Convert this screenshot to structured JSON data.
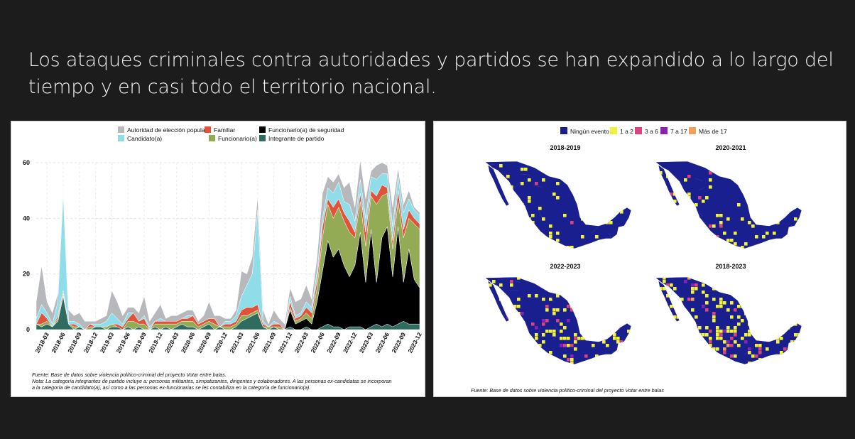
{
  "title": "Los ataques criminales contra autoridades y partidos se han expandido a lo largo del tiempo y en casi todo el territorio nacional.",
  "chart_data": {
    "type": "area",
    "stacked": true,
    "x": [
      "2018-01",
      "2018-02",
      "2018-03",
      "2018-04",
      "2018-05",
      "2018-06",
      "2018-07",
      "2018-08",
      "2018-09",
      "2018-10",
      "2018-11",
      "2018-12",
      "2019-01",
      "2019-02",
      "2019-03",
      "2019-04",
      "2019-05",
      "2019-06",
      "2019-07",
      "2019-08",
      "2019-09",
      "2019-10",
      "2019-11",
      "2019-12",
      "2020-01",
      "2020-02",
      "2020-03",
      "2020-04",
      "2020-05",
      "2020-06",
      "2020-07",
      "2020-08",
      "2020-09",
      "2020-10",
      "2020-11",
      "2020-12",
      "2021-01",
      "2021-02",
      "2021-03",
      "2021-04",
      "2021-05",
      "2021-06",
      "2021-07",
      "2021-08",
      "2021-09",
      "2021-10",
      "2021-11",
      "2021-12",
      "2022-01",
      "2022-02",
      "2022-03",
      "2022-04",
      "2022-05",
      "2022-06",
      "2022-07",
      "2022-08",
      "2022-09",
      "2022-10",
      "2022-11",
      "2022-12",
      "2023-01",
      "2023-02",
      "2023-03",
      "2023-04",
      "2023-05",
      "2023-06",
      "2023-07",
      "2023-08",
      "2023-09",
      "2023-10",
      "2023-11",
      "2023-12"
    ],
    "tick_labels": [
      "2018-03",
      "2018-06",
      "2018-09",
      "2018-12",
      "2019-03",
      "2019-06",
      "2019-09",
      "2019-12",
      "2020-03",
      "2020-06",
      "2020-09",
      "2020-12",
      "2021-03",
      "2021-06",
      "2021-09",
      "2021-12",
      "2022-03",
      "2022-06",
      "2022-09",
      "2022-12",
      "2023-03",
      "2023-06",
      "2023-09",
      "2023-12"
    ],
    "series": [
      {
        "name": "Integrante de partido",
        "color": "#2f6b5f",
        "values": [
          2,
          1,
          2,
          1,
          3,
          12,
          2,
          0,
          1,
          0,
          0,
          1,
          1,
          0,
          1,
          1,
          0,
          1,
          0,
          1,
          0,
          0,
          1,
          0,
          1,
          0,
          1,
          2,
          1,
          1,
          0,
          1,
          2,
          0,
          1,
          0,
          0,
          1,
          3,
          4,
          5,
          6,
          1,
          0,
          1,
          0,
          0,
          1,
          0,
          0,
          1,
          0,
          0,
          1,
          2,
          1,
          1,
          0,
          1,
          1,
          1,
          0,
          1,
          2,
          1,
          2,
          1,
          2,
          3,
          2,
          2,
          2
        ]
      },
      {
        "name": "Funcionario(a) de seguridad",
        "color": "#000000",
        "values": [
          0,
          0,
          0,
          0,
          0,
          0,
          0,
          0,
          0,
          0,
          0,
          0,
          0,
          0,
          0,
          0,
          0,
          0,
          0,
          0,
          0,
          0,
          0,
          0,
          0,
          0,
          0,
          0,
          0,
          0,
          0,
          0,
          0,
          0,
          0,
          0,
          0,
          0,
          0,
          0,
          0,
          0,
          0,
          0,
          0,
          0,
          0,
          6,
          2,
          3,
          3,
          2,
          10,
          20,
          30,
          25,
          28,
          23,
          18,
          22,
          34,
          17,
          35,
          15,
          32,
          35,
          18,
          35,
          14,
          27,
          16,
          13
        ]
      },
      {
        "name": "Funcionario(a)",
        "color": "#93ab55",
        "values": [
          0,
          1,
          1,
          0,
          1,
          1,
          0,
          1,
          0,
          0,
          1,
          0,
          0,
          1,
          1,
          0,
          0,
          2,
          3,
          1,
          2,
          0,
          1,
          2,
          1,
          2,
          1,
          1,
          2,
          2,
          1,
          1,
          1,
          2,
          0,
          1,
          1,
          1,
          2,
          1,
          1,
          1,
          0,
          1,
          0,
          1,
          0,
          1,
          1,
          1,
          2,
          2,
          5,
          12,
          13,
          14,
          15,
          16,
          16,
          10,
          11,
          13,
          12,
          28,
          15,
          12,
          10,
          9,
          16,
          11,
          20,
          21
        ]
      },
      {
        "name": "Familiar",
        "color": "#e0533a",
        "values": [
          0,
          4,
          1,
          0,
          1,
          1,
          0,
          1,
          0,
          0,
          1,
          0,
          0,
          0,
          0,
          1,
          1,
          1,
          3,
          1,
          2,
          0,
          1,
          1,
          1,
          1,
          1,
          1,
          1,
          2,
          1,
          1,
          1,
          2,
          0,
          1,
          1,
          1,
          2,
          3,
          2,
          2,
          1,
          0,
          1,
          1,
          0,
          2,
          1,
          1,
          2,
          2,
          3,
          4,
          2,
          4,
          3,
          3,
          4,
          2,
          3,
          5,
          2,
          3,
          4,
          2,
          3,
          4,
          3,
          3,
          2,
          2
        ]
      },
      {
        "name": "Candidato(a)",
        "color": "#8fdde8",
        "values": [
          2,
          3,
          2,
          1,
          5,
          35,
          1,
          1,
          1,
          0,
          0,
          1,
          1,
          2,
          4,
          2,
          1,
          2,
          0,
          0,
          1,
          1,
          0,
          1,
          0,
          0,
          0,
          0,
          1,
          0,
          0,
          0,
          0,
          0,
          0,
          1,
          1,
          2,
          5,
          8,
          12,
          34,
          1,
          0,
          1,
          0,
          0,
          2,
          1,
          1,
          2,
          2,
          3,
          3,
          4,
          5,
          6,
          4,
          6,
          4,
          5,
          5,
          5,
          6,
          4,
          5,
          5,
          5,
          6,
          4,
          3,
          3
        ]
      },
      {
        "name": "Autoridad de elección popular",
        "color": "#b6b8bb",
        "values": [
          6,
          14,
          4,
          4,
          3,
          2,
          4,
          2,
          4,
          3,
          1,
          1,
          2,
          2,
          8,
          6,
          3,
          2,
          2,
          3,
          7,
          2,
          3,
          5,
          1,
          2,
          2,
          2,
          2,
          2,
          1,
          2,
          6,
          1,
          4,
          1,
          1,
          2,
          9,
          4,
          6,
          5,
          4,
          1,
          4,
          2,
          2,
          3,
          5,
          5,
          6,
          3,
          5,
          9,
          4,
          4,
          3,
          5,
          8,
          5,
          7,
          7,
          2,
          5,
          4,
          3,
          7,
          3,
          3,
          3,
          1,
          1
        ]
      }
    ],
    "legend": [
      "Autoridad de elección popular",
      "Familiar",
      "Funcionario(a) de seguridad",
      "Candidato(a)",
      "Funcionario(a)",
      "Integrante de partido"
    ],
    "legend_placement": "top",
    "ylim": [
      0,
      60
    ],
    "yticks": [
      0,
      20,
      40,
      60
    ],
    "grid": true,
    "source": "Fuente: Base de datos sobre violencia político-criminal del proyecto Votar entre balas.",
    "note_lines": [
      "Nota: La categoría integrantes de partido incluye a: personas militantes, simpatizantes, dirigentes y colaboradores. A las personas ex-candidatas se incorporan",
      "a la categoría de candidato(a), así como a las personas ex-funcionarias se les contabiliza en la categoría de  funcionario(a)."
    ]
  },
  "maps": {
    "legend": [
      {
        "label": "Ningún evento",
        "color": "#1a1f8f"
      },
      {
        "label": "1 a 2",
        "color": "#f2f23a"
      },
      {
        "label": "3 a 6",
        "color": "#d9447e"
      },
      {
        "label": "7 a 17",
        "color": "#8a24b0"
      },
      {
        "label": "Más de 17",
        "color": "#f2a05a"
      }
    ],
    "panels": [
      {
        "title": "2018-2019",
        "density": 0.1
      },
      {
        "title": "2020-2021",
        "density": 0.14
      },
      {
        "title": "2022-2023",
        "density": 0.3
      },
      {
        "title": "2018-2023",
        "density": 0.42
      }
    ],
    "source": "Fuente: Base de datos sobre violencia político-criminal del proyecto Votar entre balas"
  }
}
